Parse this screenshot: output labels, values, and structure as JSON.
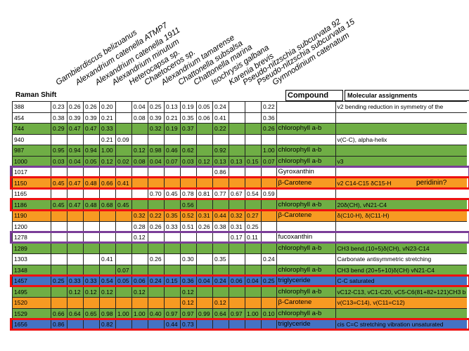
{
  "species": [
    "Gambierdiscus belizuanus",
    "Alexandrium catenella ATMP7",
    "Alexandrium catenella 1911",
    "Alexandrium minutum",
    "Heterocapsa sp.",
    "Chaetoceros sp.",
    "Alexandrium tamarense",
    "Chattonella subsalsa",
    "Chattonella marina",
    "Isochrysis galbana",
    "Karenia brevis",
    "Pseudo-nitzschia subcurvata 92",
    "Pseudo-nitzschia subcurvata 15",
    "Gymnodinium catenatum"
  ],
  "headers": {
    "raman": "Raman Shift",
    "compound": "Compound",
    "molecular": "Molecular assignments"
  },
  "note_peridinin": "peridinin?",
  "colors": {
    "green": "#6fae45",
    "orange": "#f79a22",
    "blue": "#4472c4",
    "red_outline": "#ee1111",
    "purple_outline": "#7a3d98"
  },
  "rows": [
    {
      "shift": "388",
      "vals": [
        "0.23",
        "0.26",
        "0.26",
        "0.20",
        "",
        "0.04",
        "0.25",
        "0.13",
        "0.19",
        "0.05",
        "0.24",
        "",
        "",
        "0.22"
      ],
      "compound": "",
      "molecular": "v2 bending reduction in symmetry of the",
      "color": "white"
    },
    {
      "shift": "454",
      "vals": [
        "0.38",
        "0.39",
        "0.39",
        "0.21",
        "",
        "0.08",
        "0.39",
        "0.21",
        "0.35",
        "0.06",
        "0.41",
        "",
        "",
        "0.36"
      ],
      "compound": "",
      "molecular": "",
      "color": "white"
    },
    {
      "shift": "744",
      "vals": [
        "0.29",
        "0.47",
        "0.47",
        "0.33",
        "",
        "",
        "0.32",
        "0.19",
        "0.37",
        "",
        "0.22",
        "",
        "",
        "0.26"
      ],
      "compound": "chlorophyll a-b",
      "molecular": "",
      "color": "green"
    },
    {
      "shift": "940",
      "vals": [
        "",
        "",
        "",
        "0.21",
        "0.09",
        "",
        "",
        "",
        "",
        "",
        "",
        "",
        "",
        ""
      ],
      "compound": "",
      "molecular": "v(C-C), alpha-helix",
      "color": "white"
    },
    {
      "shift": "987",
      "vals": [
        "0.95",
        "0.94",
        "0.94",
        "1.00",
        "",
        "0.12",
        "0.98",
        "0.46",
        "0.62",
        "",
        "0.92",
        "",
        "",
        "1.00"
      ],
      "compound": "chlorophyll a-b",
      "molecular": "",
      "color": "green"
    },
    {
      "shift": "1000",
      "vals": [
        "0.03",
        "0.04",
        "0.05",
        "0.12",
        "0.02",
        "0.08",
        "0.04",
        "0.07",
        "0.03",
        "0.12",
        "0.13",
        "0.13",
        "0.15",
        "0.07"
      ],
      "compound": "chlorophyll a-b",
      "molecular": "v3",
      "color": "green"
    },
    {
      "shift": "1017",
      "vals": [
        "",
        "",
        "",
        "",
        "",
        "",
        "",
        "",
        "",
        "",
        "0.86",
        "",
        "",
        ""
      ],
      "compound": "Gyroxanthin",
      "molecular": "",
      "color": "white"
    },
    {
      "shift": "1150",
      "vals": [
        "0.45",
        "0.47",
        "0.48",
        "0.66",
        "0.41",
        "",
        "",
        "",
        "",
        "",
        "",
        "",
        "",
        ""
      ],
      "compound": "β-Carotene",
      "molecular": "v2 C14-C15  δC15-H",
      "color": "orange"
    },
    {
      "shift": "1165",
      "vals": [
        "",
        "",
        "",
        "",
        "",
        "",
        "0.70",
        "0.45",
        "0.78",
        "0.81",
        "0.77",
        "0.67",
        "0.54",
        "0.59"
      ],
      "compound": "",
      "molecular": "",
      "color": "white"
    },
    {
      "shift": "1186",
      "vals": [
        "0.45",
        "0.47",
        "0.48",
        "0.68",
        "0.45",
        "",
        "",
        "",
        "0.56",
        "",
        "",
        "",
        "",
        ""
      ],
      "compound": "chlorophyll a-b",
      "molecular": "20δ(CH),  vN21-C4",
      "color": "green"
    },
    {
      "shift": "1190",
      "vals": [
        "",
        "",
        "",
        "",
        "",
        "0.32",
        "0.22",
        "0.35",
        "0.52",
        "0.31",
        "0.44",
        "0.32",
        "0.27",
        ""
      ],
      "compound": "β-Carotene",
      "molecular": "δ(C10-H), δ(C11-H)",
      "color": "orange"
    },
    {
      "shift": "1200",
      "vals": [
        "",
        "",
        "",
        "",
        "",
        "0.28",
        "0.26",
        "0.33",
        "0.51",
        "0.26",
        "0.38",
        "0.31",
        "0.25",
        ""
      ],
      "compound": "",
      "molecular": "",
      "color": "white"
    },
    {
      "shift": "1278",
      "vals": [
        "",
        "",
        "",
        "",
        "",
        "0.12",
        "",
        "",
        "",
        "",
        "",
        "0.17",
        "0.11",
        ""
      ],
      "compound": "fucoxanthin",
      "molecular": "",
      "color": "white"
    },
    {
      "shift": "1289",
      "vals": [
        "",
        "",
        "",
        "",
        "",
        "",
        "",
        "",
        "",
        "",
        "",
        "",
        "",
        ""
      ],
      "compound": "chlorophyll a-b",
      "molecular": "CH3 bend,(10+5)δ(CH), vN23-C14",
      "color": "green"
    },
    {
      "shift": "1303",
      "vals": [
        "",
        "",
        "",
        "0.41",
        "",
        "",
        "0.26",
        "",
        "0.30",
        "",
        "0.35",
        "",
        "",
        "0.24"
      ],
      "compound": "",
      "molecular": "Carbonate antisymmetric stretching",
      "color": "white"
    },
    {
      "shift": "1348",
      "vals": [
        "",
        "",
        "",
        "",
        "0.07",
        "",
        "",
        "",
        "",
        "",
        "",
        "",
        "",
        ""
      ],
      "compound": "chlorophyll a-b",
      "molecular": "CH3 bend (20+5+10)δ(CH) vN21-C4",
      "color": "green"
    },
    {
      "shift": "1457",
      "vals": [
        "0.25",
        "0.33",
        "0.33",
        "0.54",
        "0.05",
        "0.06",
        "0.24",
        "0.15",
        "0.36",
        "0.04",
        "0.24",
        "0.06",
        "0.04",
        "0.25"
      ],
      "compound": "triglyceride",
      "molecular": "C-C saturated",
      "color": "blue"
    },
    {
      "shift": "1495",
      "vals": [
        "",
        "0.12",
        "0.12",
        "0.12",
        "",
        "0.12",
        "",
        "",
        "0.12",
        "",
        "",
        "",
        "",
        ""
      ],
      "compound": "chlorophyll a-b",
      "molecular": "vC12-C13, vC1-C20, vC5-C6(81+82+121)CH3 b",
      "color": "green"
    },
    {
      "shift": "1520",
      "vals": [
        "",
        "",
        "",
        "",
        "",
        "",
        "",
        "",
        "0.12",
        "",
        "0.12",
        "",
        "",
        ""
      ],
      "compound": "β-Carotene",
      "molecular": "v(C13=C14),  v(C11=C12)",
      "color": "orange"
    },
    {
      "shift": "1529",
      "vals": [
        "0.66",
        "0.64",
        "0.65",
        "0.98",
        "1.00",
        "1.00",
        "0.40",
        "0.97",
        "0.97",
        "0.99",
        "0.64",
        "0.97",
        "1.00",
        "0.10"
      ],
      "compound": "chlorophyll a-b",
      "molecular": "",
      "color": "green"
    },
    {
      "shift": "1656",
      "vals": [
        "0.86",
        "",
        "",
        "0.82",
        "",
        "",
        "",
        "0.44",
        "0.73",
        "",
        "",
        "",
        "",
        ""
      ],
      "compound": "triglyceride",
      "molecular": "cis C=C stretching vibration unsaturated",
      "color": "blue"
    }
  ]
}
